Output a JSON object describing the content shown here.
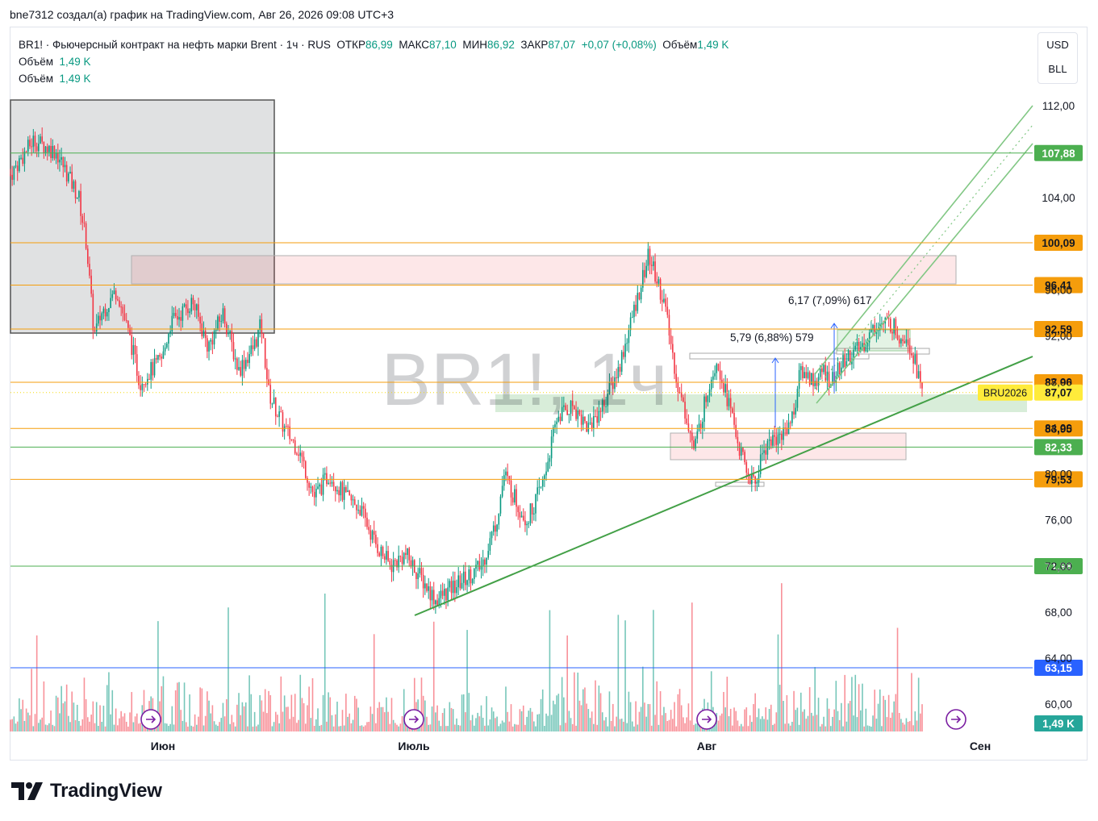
{
  "header": {
    "credit": "bne7312 создал(а) график на TradingView.com, Авг 26, 2026 09:08 UTC+3"
  },
  "legend": {
    "symbol_line": "BR1! · Фьючерсный контракт на нефть марки Brent · 1ч · RUS",
    "open_label": "ОТКР",
    "open": "86,99",
    "high_label": "МАКС",
    "high": "87,10",
    "low_label": "МИН",
    "low": "86,92",
    "close_label": "ЗАКР",
    "close": "87,07",
    "change": "+0,07 (+0,08%)",
    "vol_label": "Объём",
    "vol": "1,49 K",
    "vol_rows": [
      {
        "label": "Объём",
        "value": "1,49 K"
      },
      {
        "label": "Объём",
        "value": "1,49 K"
      }
    ]
  },
  "units": {
    "currency": "USD",
    "unit": "BLL"
  },
  "watermark": "BR1!, 1ч",
  "branding": {
    "logo_text": "TradingView",
    "icon": "tradingview-logo-icon"
  },
  "colors": {
    "up": "#089981",
    "down": "#f23645",
    "orange_level": "#f59d0c",
    "green_level": "#4caf50",
    "blue_level": "#2962ff"
  },
  "chart_data": {
    "type": "candlestick",
    "y_axis": {
      "ticks": [
        "112,00",
        "104,00",
        "96,00",
        "92,00",
        "88,00",
        "84,00",
        "80,00",
        "76,00",
        "72,00",
        "68,00",
        "64,00",
        "60,00"
      ],
      "range": [
        58.5,
        114.5
      ]
    },
    "x_axis": {
      "labels": [
        "Июн",
        "Июль",
        "Авг",
        "Сен"
      ]
    },
    "levels": [
      {
        "label": "107,88",
        "value": 107.88,
        "color": "green"
      },
      {
        "label": "100,09",
        "value": 100.09,
        "color": "orange"
      },
      {
        "label": "96,41",
        "value": 96.41,
        "color": "orange"
      },
      {
        "label": "92,59",
        "value": 92.59,
        "color": "orange"
      },
      {
        "label": "87,96",
        "value": 87.96,
        "color": "orange"
      },
      {
        "label": "87,07",
        "value": 87.07,
        "color": "yellow",
        "tag": "BRU2026"
      },
      {
        "label": "83,95",
        "value": 83.95,
        "color": "orange"
      },
      {
        "label": "82,33",
        "value": 82.33,
        "color": "green"
      },
      {
        "label": "79,53",
        "value": 79.53,
        "color": "orange"
      },
      {
        "label": "71,98",
        "value": 71.98,
        "color": "green"
      },
      {
        "label": "63,15",
        "value": 63.15,
        "color": "blue"
      }
    ],
    "volume_last": "1,49 K",
    "annotations": [
      {
        "text": "6,17 (7,09%) 617"
      },
      {
        "text": "5,79 (6,88%) 579"
      }
    ],
    "price_path": [
      [
        0,
        106
      ],
      [
        3,
        109
      ],
      [
        6,
        108
      ],
      [
        9,
        104
      ],
      [
        10,
        100
      ],
      [
        11,
        92
      ],
      [
        12,
        94
      ],
      [
        14,
        96
      ],
      [
        16,
        91
      ],
      [
        17,
        88
      ],
      [
        20,
        90
      ],
      [
        21,
        93
      ],
      [
        24,
        95
      ],
      [
        26,
        91
      ],
      [
        28,
        94
      ],
      [
        30,
        89
      ],
      [
        32,
        91
      ],
      [
        33,
        93
      ],
      [
        34,
        87
      ],
      [
        36,
        84
      ],
      [
        38,
        82
      ],
      [
        40,
        78
      ],
      [
        42,
        80
      ],
      [
        43,
        79
      ],
      [
        44,
        78
      ],
      [
        46,
        77
      ],
      [
        48,
        74
      ],
      [
        50,
        72
      ],
      [
        52,
        73
      ],
      [
        54,
        71
      ],
      [
        56,
        69
      ],
      [
        58,
        70
      ],
      [
        60,
        71
      ],
      [
        62,
        72
      ],
      [
        64,
        76
      ],
      [
        65,
        80
      ],
      [
        67,
        77
      ],
      [
        68,
        76
      ],
      [
        70,
        79
      ],
      [
        72,
        85
      ],
      [
        74,
        86
      ],
      [
        76,
        84
      ],
      [
        78,
        86
      ],
      [
        80,
        89
      ],
      [
        82,
        94
      ],
      [
        84,
        99
      ],
      [
        86,
        95
      ],
      [
        87,
        91
      ],
      [
        88,
        87
      ],
      [
        89,
        85
      ],
      [
        90,
        82
      ],
      [
        92,
        88
      ],
      [
        93,
        90
      ],
      [
        95,
        85
      ],
      [
        96,
        82
      ],
      [
        97,
        80
      ],
      [
        98,
        79
      ],
      [
        99,
        82
      ],
      [
        100,
        83
      ],
      [
        101,
        83
      ],
      [
        102,
        84
      ],
      [
        103,
        85
      ],
      [
        104,
        89
      ],
      [
        106,
        88
      ],
      [
        107,
        89
      ],
      [
        108,
        88
      ],
      [
        110,
        90
      ],
      [
        112,
        91
      ],
      [
        114,
        93
      ],
      [
        116,
        93
      ],
      [
        117,
        92
      ],
      [
        118,
        92
      ],
      [
        119,
        90
      ],
      [
        120,
        87
      ]
    ]
  }
}
